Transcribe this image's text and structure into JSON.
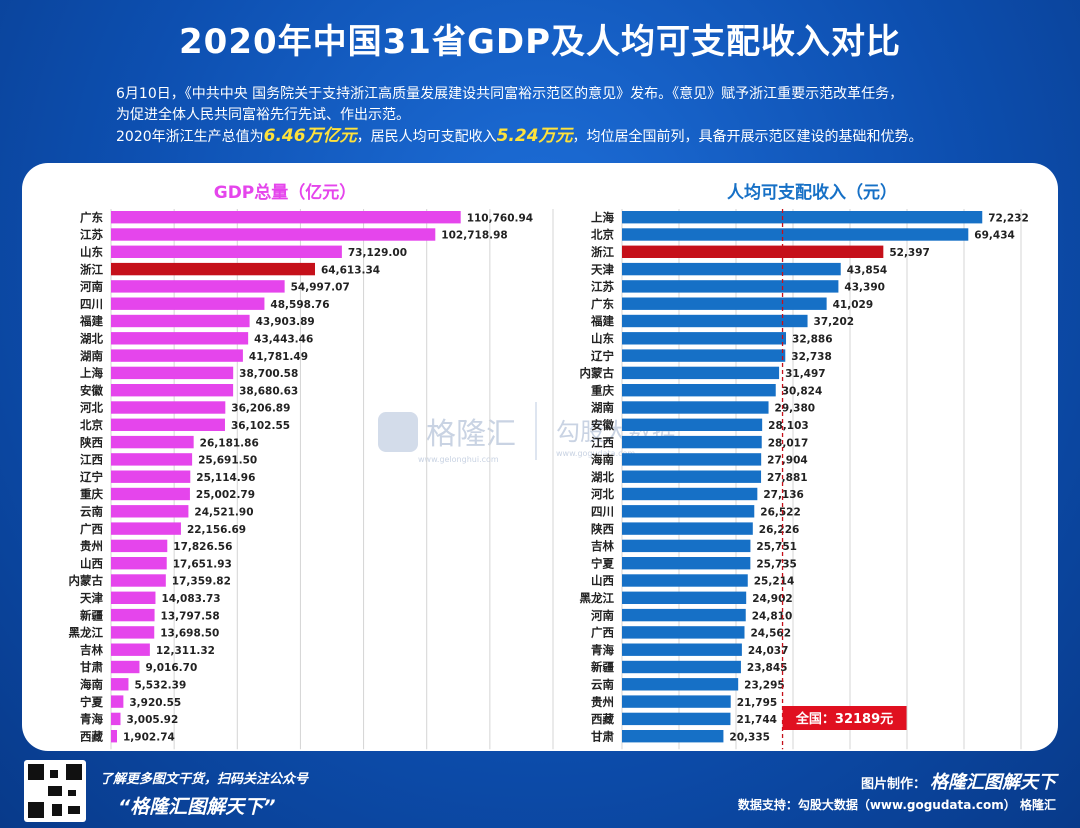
{
  "title": "2020年中国31省GDP及人均可支配收入对比",
  "intro": {
    "line1": "6月10日，《中共中央 国务院关于支持浙江高质量发展建设共同富裕示范区的意见》发布。《意见》赋予浙江重要示范改革任务，",
    "line2": "为促进全体人民共同富裕先行先试、作出示范。",
    "line3_a": "2020年浙江生产总值为",
    "line3_gdp": "6.46万亿元",
    "line3_b": "，居民人均可支配收入",
    "line3_income": "5.24万元",
    "line3_c": "，均位居全国前列，具备开展示范区建设的基础和优势。"
  },
  "watermark": {
    "brand": "格隆汇",
    "url": "www.gelonghui.com",
    "brand2": "勾股大数据",
    "url2": "www.gogudata.com"
  },
  "footer": {
    "left1": "了解更多图文干货，扫码关注公众号",
    "left2": "“格隆汇图解天下”",
    "right1_label": "图片制作：",
    "right1_logo": "格隆汇图解天下",
    "right2": "数据支持：勾股大数据（www.gogudata.com）",
    "corner_logo": "格隆汇"
  },
  "colors": {
    "gdp_bar": "#e545ec",
    "income_bar": "#1670c6",
    "highlight": "#c5101a",
    "title_gdp": "#e545ec",
    "title_income": "#1670c6"
  },
  "chart_data": [
    {
      "type": "bar",
      "orientation": "horizontal",
      "title": "GDP总量（亿元）",
      "highlight": "浙江",
      "xlim": [
        0,
        140000
      ],
      "categories": [
        "广东",
        "江苏",
        "山东",
        "浙江",
        "河南",
        "四川",
        "福建",
        "湖北",
        "湖南",
        "上海",
        "安徽",
        "河北",
        "北京",
        "陕西",
        "江西",
        "辽宁",
        "重庆",
        "云南",
        "广西",
        "贵州",
        "山西",
        "内蒙古",
        "天津",
        "新疆",
        "黑龙江",
        "吉林",
        "甘肃",
        "海南",
        "宁夏",
        "青海",
        "西藏"
      ],
      "values": [
        110760.94,
        102718.98,
        73129.0,
        64613.34,
        54997.07,
        48598.76,
        43903.89,
        43443.46,
        41781.49,
        38700.58,
        38680.63,
        36206.89,
        36102.55,
        26181.86,
        25691.5,
        25114.96,
        25002.79,
        24521.9,
        22156.69,
        17826.56,
        17651.93,
        17359.82,
        14083.73,
        13797.58,
        13698.5,
        12311.32,
        9016.7,
        5532.39,
        3920.55,
        3005.92,
        1902.74
      ],
      "labels": [
        "110,760.94",
        "102,718.98",
        "73,129.00",
        "64,613.34",
        "54,997.07",
        "48,598.76",
        "43,903.89",
        "43,443.46",
        "41,781.49",
        "38,700.58",
        "38,680.63",
        "36,206.89",
        "36,102.55",
        "26,181.86",
        "25,691.50",
        "25,114.96",
        "25,002.79",
        "24,521.90",
        "22,156.69",
        "17,826.56",
        "17,651.93",
        "17,359.82",
        "14,083.73",
        "13,797.58",
        "13,698.50",
        "12,311.32",
        "9,016.70",
        "5,532.39",
        "3,920.55",
        "3,005.92",
        "1,902.74"
      ]
    },
    {
      "type": "bar",
      "orientation": "horizontal",
      "title": "人均可支配收入（元）",
      "highlight": "浙江",
      "xlim": [
        0,
        80000
      ],
      "reference_line": {
        "value": 32189,
        "label": "全国：32189元"
      },
      "categories": [
        "上海",
        "北京",
        "浙江",
        "天津",
        "江苏",
        "广东",
        "福建",
        "山东",
        "辽宁",
        "内蒙古",
        "重庆",
        "湖南",
        "安徽",
        "江西",
        "海南",
        "湖北",
        "河北",
        "四川",
        "陕西",
        "吉林",
        "宁夏",
        "山西",
        "黑龙江",
        "河南",
        "广西",
        "青海",
        "新疆",
        "云南",
        "贵州",
        "西藏",
        "甘肃"
      ],
      "values": [
        72232,
        69434,
        52397,
        43854,
        43390,
        41029,
        37202,
        32886,
        32738,
        31497,
        30824,
        29380,
        28103,
        28017,
        27904,
        27881,
        27136,
        26522,
        26226,
        25751,
        25735,
        25214,
        24902,
        24810,
        24562,
        24037,
        23845,
        23295,
        21795,
        21744,
        20335
      ],
      "labels": [
        "72,232",
        "69,434",
        "52,397",
        "43,854",
        "43,390",
        "41,029",
        "37,202",
        "32,886",
        "32,738",
        "31,497",
        "30,824",
        "29,380",
        "28,103",
        "28,017",
        "27,904",
        "27,881",
        "27,136",
        "26,522",
        "26,226",
        "25,751",
        "25,735",
        "25,214",
        "24,902",
        "24,810",
        "24,562",
        "24,037",
        "23,845",
        "23,295",
        "21,795",
        "21,744",
        "20,335"
      ]
    }
  ]
}
